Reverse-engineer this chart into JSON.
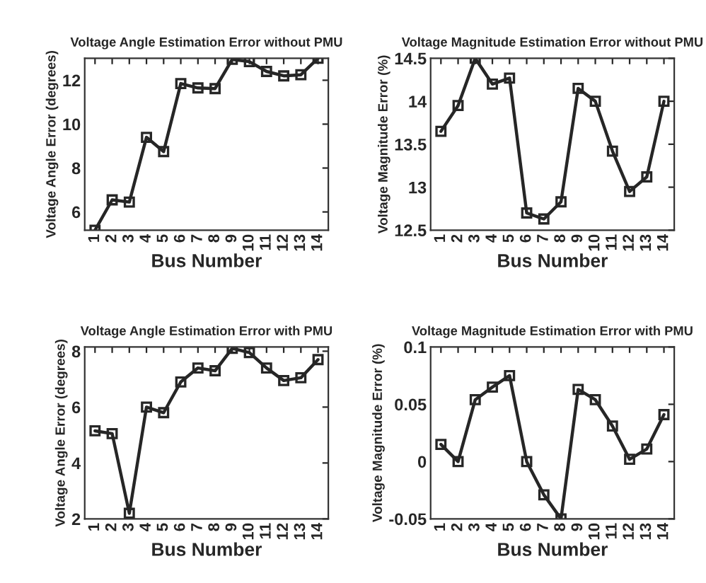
{
  "chart_data": [
    {
      "type": "line",
      "title": "Voltage Angle Estimation Error without PMU",
      "xlabel": "Bus Number",
      "ylabel": "Voltage Angle Error (degrees)",
      "categories": [
        "1",
        "2",
        "3",
        "4",
        "5",
        "6",
        "7",
        "8",
        "9",
        "10",
        "11",
        "12",
        "13",
        "14"
      ],
      "series": [
        {
          "color": "#262626",
          "values": [
            5.17,
            6.55,
            6.45,
            9.4,
            8.75,
            11.85,
            11.65,
            11.62,
            12.95,
            12.85,
            12.4,
            12.2,
            12.25,
            13.0
          ]
        }
      ],
      "ylim": [
        5.17,
        13.0
      ],
      "yticks": [
        6,
        8,
        10,
        12
      ],
      "marker": "square",
      "line_style": "solid",
      "grid": false
    },
    {
      "type": "line",
      "title": "Voltage Magnitude Estimation Error without PMU",
      "xlabel": "Bus Number",
      "ylabel": "Voltage Magnitude Error (%)",
      "categories": [
        "1",
        "2",
        "3",
        "4",
        "5",
        "6",
        "7",
        "8",
        "9",
        "10",
        "11",
        "12",
        "13",
        "14"
      ],
      "series": [
        {
          "color": "#262626",
          "values": [
            13.65,
            13.95,
            14.5,
            14.2,
            14.27,
            12.7,
            12.63,
            12.83,
            14.15,
            14.0,
            13.42,
            12.95,
            13.12,
            14.0
          ]
        }
      ],
      "ylim": [
        12.5,
        14.5
      ],
      "yticks": [
        12.5,
        13,
        13.5,
        14,
        14.5
      ],
      "marker": "square",
      "line_style": "solid",
      "grid": false
    },
    {
      "type": "line",
      "title": "Voltage Angle Estimation Error with PMU",
      "xlabel": "Bus Number",
      "ylabel": "Voltage Angle Error (degrees)",
      "categories": [
        "1",
        "2",
        "3",
        "4",
        "5",
        "6",
        "7",
        "8",
        "9",
        "10",
        "11",
        "12",
        "13",
        "14"
      ],
      "series": [
        {
          "color": "#262626",
          "values": [
            5.15,
            5.05,
            2.2,
            6.0,
            5.8,
            6.9,
            7.4,
            7.3,
            8.1,
            7.95,
            7.4,
            6.95,
            7.05,
            7.7
          ]
        }
      ],
      "ylim": [
        2,
        8.15
      ],
      "yticks": [
        2,
        4,
        6,
        8
      ],
      "marker": "square",
      "line_style": "solid",
      "grid": false
    },
    {
      "type": "line",
      "title": "Voltage Magnitude Estimation Error with PMU",
      "xlabel": "Bus Number",
      "ylabel": "Voltage Magnitude Error (%)",
      "categories": [
        "1",
        "2",
        "3",
        "4",
        "5",
        "6",
        "7",
        "8",
        "9",
        "10",
        "11",
        "12",
        "13",
        "14"
      ],
      "series": [
        {
          "color": "#262626",
          "values": [
            0.015,
            0.0,
            0.054,
            0.065,
            0.075,
            0.0,
            -0.029,
            -0.05,
            0.063,
            0.054,
            0.031,
            0.002,
            0.011,
            0.041
          ]
        }
      ],
      "ylim": [
        -0.05,
        0.1
      ],
      "yticks": [
        -0.05,
        0,
        0.05,
        0.1
      ],
      "marker": "square",
      "line_style": "solid",
      "grid": false
    }
  ]
}
